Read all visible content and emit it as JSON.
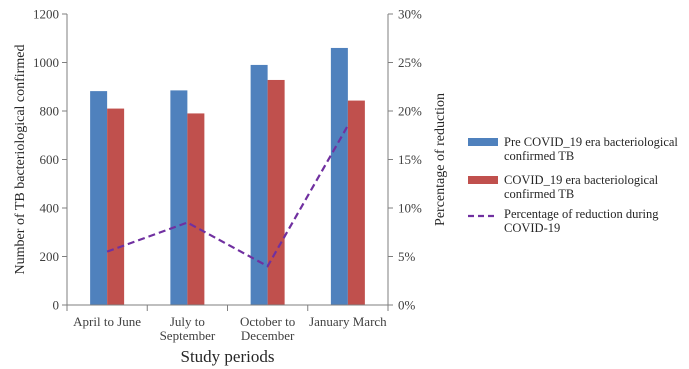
{
  "chart_data": {
    "type": "bar",
    "categories": [
      "April to June",
      "July to September",
      "October to December",
      "January  March"
    ],
    "category_lines": [
      [
        "April to June"
      ],
      [
        "July to",
        "September"
      ],
      [
        "October to",
        "December"
      ],
      [
        "January  March"
      ]
    ],
    "series": [
      {
        "name": "Pre COVID_19 era bacteriological confirmed TB",
        "legend_lines": [
          "Pre COVID_19 era bacteriological",
          "confirmed TB"
        ],
        "type": "bar",
        "color": "#4f81bd",
        "values": [
          882,
          885,
          990,
          1060
        ]
      },
      {
        "name": " COVID_19  era bacteriological confirmed TB",
        "legend_lines": [
          " COVID_19  era bacteriological",
          "confirmed TB"
        ],
        "type": "bar",
        "color": "#c0504d",
        "values": [
          810,
          790,
          928,
          843
        ]
      },
      {
        "name": "Percentage of reduction during COVID-19",
        "legend_lines": [
          "Percentage of reduction  during",
          "COVID-19"
        ],
        "type": "line",
        "style": "dashed",
        "axis": "right",
        "color": "#7030a0",
        "values": [
          5.5,
          8.5,
          4.0,
          18.5
        ]
      }
    ],
    "xlabel": "Study periods",
    "ylabel": "Number of TB bacteriological confirmed",
    "y2label": "Percentage of reduction",
    "ylim": [
      0,
      1200
    ],
    "yticks": [
      0,
      200,
      400,
      600,
      800,
      1000,
      1200
    ],
    "y2lim": [
      0,
      30
    ],
    "y2ticks": [
      "0%",
      "5%",
      "10%",
      "15%",
      "20%",
      "25%",
      "30%"
    ],
    "grid": false,
    "legend_position": "right"
  }
}
